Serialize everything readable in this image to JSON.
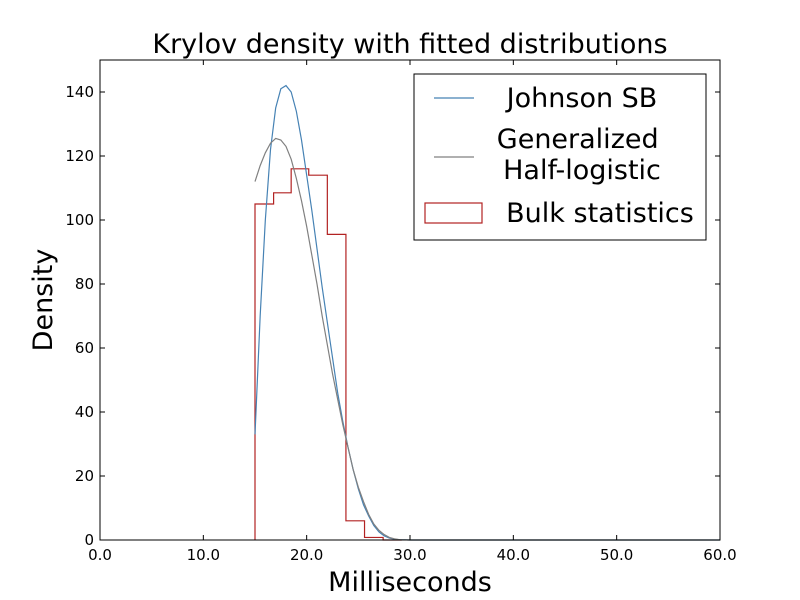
{
  "chart_data": {
    "type": "line",
    "title": "Krylov density with fitted distributions",
    "xlabel": "Milliseconds",
    "ylabel": "Density",
    "xlim": [
      0,
      60
    ],
    "ylim": [
      0,
      150
    ],
    "xticks": [
      0,
      10,
      20,
      30,
      40,
      50,
      60
    ],
    "xtick_labels": [
      "0.0",
      "10.0",
      "20.0",
      "30.0",
      "40.0",
      "50.0",
      "60.0"
    ],
    "yticks": [
      0,
      20,
      40,
      60,
      80,
      100,
      120,
      140
    ],
    "ytick_labels": [
      "0",
      "20",
      "40",
      "60",
      "80",
      "100",
      "120",
      "140"
    ],
    "grid": false,
    "legend_position": "top-right",
    "series": [
      {
        "name": "Johnson SB",
        "kind": "line",
        "color": "#4682b4",
        "x": [
          15.0,
          15.5,
          16.0,
          16.5,
          17.0,
          17.5,
          18.0,
          18.5,
          19.0,
          19.5,
          20.0,
          20.5,
          21.0,
          21.5,
          22.0,
          22.5,
          23.0,
          23.5,
          24.0,
          24.5,
          25.0,
          25.5,
          26.0,
          26.5,
          27.0,
          27.5,
          28.0,
          28.5,
          29.0,
          30.0,
          35.0,
          40.0,
          50.0,
          60.0
        ],
        "y": [
          33,
          70,
          100,
          122,
          135,
          141,
          142,
          140,
          134,
          125,
          114,
          103,
          91,
          79,
          68,
          57,
          46,
          37,
          29,
          22,
          16,
          11,
          7.5,
          4.5,
          2.5,
          1.3,
          0.6,
          0.25,
          0.1,
          0,
          0,
          0,
          0,
          0
        ]
      },
      {
        "name": "Generalized Half-logistic",
        "kind": "line",
        "color": "#808080",
        "x": [
          15.0,
          15.5,
          16.0,
          16.5,
          17.0,
          17.5,
          18.0,
          18.5,
          19.0,
          19.5,
          20.0,
          20.5,
          21.0,
          21.5,
          22.0,
          22.5,
          23.0,
          23.5,
          24.0,
          24.5,
          25.0,
          25.5,
          26.0,
          26.5,
          27.0,
          27.5,
          28.0,
          28.5,
          29.0,
          30.0,
          35.0,
          40.0,
          50.0,
          60.0
        ],
        "y": [
          112,
          117,
          121,
          124,
          125.5,
          125,
          123,
          119,
          113,
          106,
          98,
          89,
          80,
          70,
          61,
          52,
          44,
          36,
          29,
          22,
          16.5,
          12,
          8,
          5,
          3,
          1.7,
          0.8,
          0.35,
          0.1,
          0,
          0,
          0,
          0,
          0
        ]
      },
      {
        "name": "Bulk statistics",
        "kind": "step-histogram",
        "color": "#b22222",
        "bin_edges": [
          15.0,
          16.8,
          18.5,
          20.2,
          22.0,
          23.8,
          25.6,
          27.4,
          29.2
        ],
        "values": [
          105,
          108.5,
          116,
          114,
          95.5,
          6,
          0.8,
          0
        ]
      }
    ]
  }
}
